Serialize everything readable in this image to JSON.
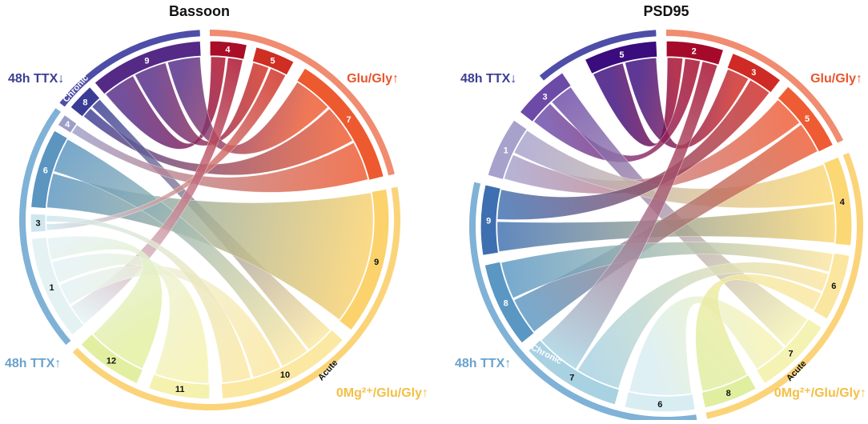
{
  "chart_data": [
    {
      "type": "chord",
      "title": "Bassoon",
      "groups": [
        {
          "name": "48h TTX↓",
          "color": "#4e4ea8",
          "sublabel": "Chronic"
        },
        {
          "name": "Glu/Gly↑",
          "color": "#f08c70",
          "sublabel": "Acute"
        },
        {
          "name": "0Mg²⁺/Glu/Gly↑",
          "color": "#fbd47a",
          "sublabel": "Acute"
        },
        {
          "name": "48h TTX↑",
          "color": "#7fb2d6",
          "sublabel": "Chronic"
        }
      ],
      "segments": [
        {
          "id": "b9",
          "label": "9",
          "group": 0,
          "color": "#542a86"
        },
        {
          "id": "b4t",
          "label": "4",
          "group": 1,
          "color": "#aa0d28"
        },
        {
          "id": "b5",
          "label": "5",
          "group": 1,
          "color": "#cf2e22"
        },
        {
          "id": "b7",
          "label": "7",
          "group": 1,
          "color": "#ee5a30"
        },
        {
          "id": "b9r",
          "label": "9",
          "group": 2,
          "color": "#fbd26c"
        },
        {
          "id": "b10",
          "label": "10",
          "group": 2,
          "color": "#fbe8a2"
        },
        {
          "id": "b11",
          "label": "11",
          "group": 2,
          "color": "#f5f2b0"
        },
        {
          "id": "b12",
          "label": "12",
          "group": 2,
          "color": "#e3efa0"
        },
        {
          "id": "b1",
          "label": "1",
          "group": 3,
          "color": "#e4f2f4"
        },
        {
          "id": "b3",
          "label": "3",
          "group": 3,
          "color": "#cfe6ef"
        },
        {
          "id": "b6",
          "label": "6",
          "group": 3,
          "color": "#5b95c0"
        },
        {
          "id": "b4l",
          "label": "4",
          "group": 0,
          "color": "#9d9ec8"
        },
        {
          "id": "b8",
          "label": "8",
          "group": 0,
          "color": "#3a3d95"
        }
      ],
      "chords": [
        [
          "b9",
          "b4t",
          1.0
        ],
        [
          "b9",
          "b5",
          1.0
        ],
        [
          "b9",
          "b7",
          1.0
        ],
        [
          "b8",
          "b7",
          1.0
        ],
        [
          "b8",
          "b10",
          1.0
        ],
        [
          "b4l",
          "b7",
          1.0
        ],
        [
          "b6",
          "b9r",
          1.0
        ],
        [
          "b6",
          "b10",
          1.0
        ],
        [
          "b3",
          "b5",
          1.0
        ],
        [
          "b1",
          "b4t",
          1.0
        ],
        [
          "b1",
          "b10",
          1.0
        ],
        [
          "b1",
          "b11",
          1.0
        ],
        [
          "b1",
          "b12",
          1.0
        ],
        [
          "b3",
          "b10",
          1.0
        ]
      ]
    },
    {
      "type": "chord",
      "title": "PSD95",
      "groups": [
        {
          "name": "48h TTX↓",
          "color": "#4e4ea8",
          "sublabel": "Chronic"
        },
        {
          "name": "Glu/Gly↑",
          "color": "#f08c70",
          "sublabel": "Acute"
        },
        {
          "name": "0Mg²⁺/Glu/Gly↑",
          "color": "#fbd47a",
          "sublabel": "Acute"
        },
        {
          "name": "48h TTX↑",
          "color": "#7fb2d6",
          "sublabel": "Chronic"
        }
      ],
      "segments": [
        {
          "id": "p5t",
          "label": "5",
          "group": 0,
          "color": "#3a0c7d"
        },
        {
          "id": "p2",
          "label": "2",
          "group": 1,
          "color": "#a60a2a"
        },
        {
          "id": "p3",
          "label": "3",
          "group": 1,
          "color": "#cf2a25"
        },
        {
          "id": "p5r",
          "label": "5",
          "group": 1,
          "color": "#ef5c34"
        },
        {
          "id": "p4",
          "label": "4",
          "group": 2,
          "color": "#fbd874"
        },
        {
          "id": "p6",
          "label": "6",
          "group": 2,
          "color": "#fbe6a0"
        },
        {
          "id": "p7r",
          "label": "7",
          "group": 2,
          "color": "#f5f3b4"
        },
        {
          "id": "p8b",
          "label": "8",
          "group": 2,
          "color": "#e0eea0"
        },
        {
          "id": "p6b",
          "label": "6",
          "group": 3,
          "color": "#d8edf2"
        },
        {
          "id": "p7l",
          "label": "7",
          "group": 3,
          "color": "#a8d2e2"
        },
        {
          "id": "p8l",
          "label": "8",
          "group": 3,
          "color": "#5a97c3"
        },
        {
          "id": "p9",
          "label": "9",
          "group": 3,
          "color": "#3e6fb0"
        },
        {
          "id": "p1",
          "label": "1",
          "group": 0,
          "color": "#a7a2cc"
        },
        {
          "id": "p3t",
          "label": "3",
          "group": 0,
          "color": "#6c4aa8"
        }
      ],
      "chords": [
        [
          "p5t",
          "p2",
          1.0
        ],
        [
          "p5t",
          "p3",
          1.0
        ],
        [
          "p3t",
          "p2",
          1.0
        ],
        [
          "p3t",
          "p7r",
          1.0
        ],
        [
          "p1",
          "p5r",
          1.0
        ],
        [
          "p1",
          "p4",
          1.0
        ],
        [
          "p9",
          "p4",
          1.0
        ],
        [
          "p9",
          "p3",
          1.0
        ],
        [
          "p8l",
          "p5r",
          1.0
        ],
        [
          "p8l",
          "p6",
          1.0
        ],
        [
          "p7l",
          "p6",
          1.0
        ],
        [
          "p6b",
          "p7r",
          1.0
        ],
        [
          "p8b",
          "p6",
          1.0
        ],
        [
          "p7l",
          "p2",
          1.0
        ]
      ]
    }
  ]
}
